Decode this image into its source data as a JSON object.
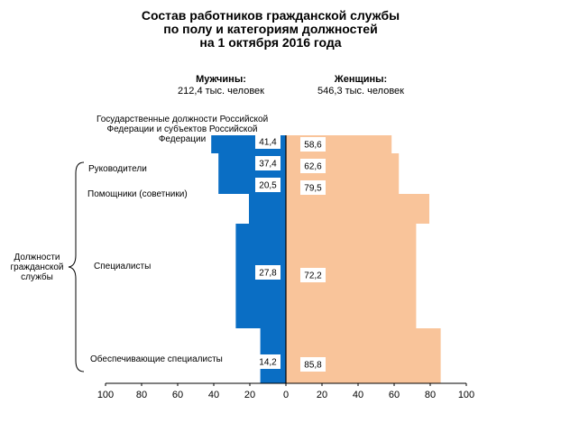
{
  "title": {
    "line1": "Состав работников гражданской службы",
    "line2": "по полу и категориям должностей",
    "line3": "на 1 октября 2016 года"
  },
  "men": {
    "label": "Мужчины:",
    "total": "212,4 тыс. человек"
  },
  "women": {
    "label": "Женщины:",
    "total": "546,3 тыс. человек"
  },
  "group_label": [
    "Должности",
    "гражданской",
    "службы"
  ],
  "chart_data": {
    "type": "bar",
    "orientation": "horizontal-population-pyramid",
    "unit": "percent",
    "categories": [
      "Государственные должности Российской Федерации и субъектов Российской Федерации",
      "Руководители",
      "Помощники (советники)",
      "Специалисты",
      "Обеспечивающие специалисты"
    ],
    "category_lines": [
      [
        "Государственные должности Российской",
        "Федерации и субъектов Российской",
        "Федерации"
      ],
      [
        "Руководители"
      ],
      [
        "Помощники (советники)"
      ],
      [
        "Специалисты"
      ],
      [
        "Обеспечивающие специалисты"
      ]
    ],
    "series": [
      {
        "name": "Мужчины",
        "color": "#0a6ec4",
        "values": [
          41.4,
          37.4,
          20.5,
          27.8,
          14.2
        ],
        "labels": [
          "41,4",
          "37,4",
          "20,5",
          "27,8",
          "14,2"
        ]
      },
      {
        "name": "Женщины",
        "color": "#f9c49a",
        "values": [
          58.6,
          62.6,
          79.5,
          72.2,
          85.8
        ],
        "labels": [
          "58,6",
          "62,6",
          "79,5",
          "72,2",
          "85,8"
        ]
      }
    ],
    "x_ticks": [
      "100",
      "80",
      "60",
      "40",
      "20",
      "0",
      "20",
      "40",
      "60",
      "80",
      "100"
    ],
    "xlim": [
      -100,
      100
    ]
  }
}
